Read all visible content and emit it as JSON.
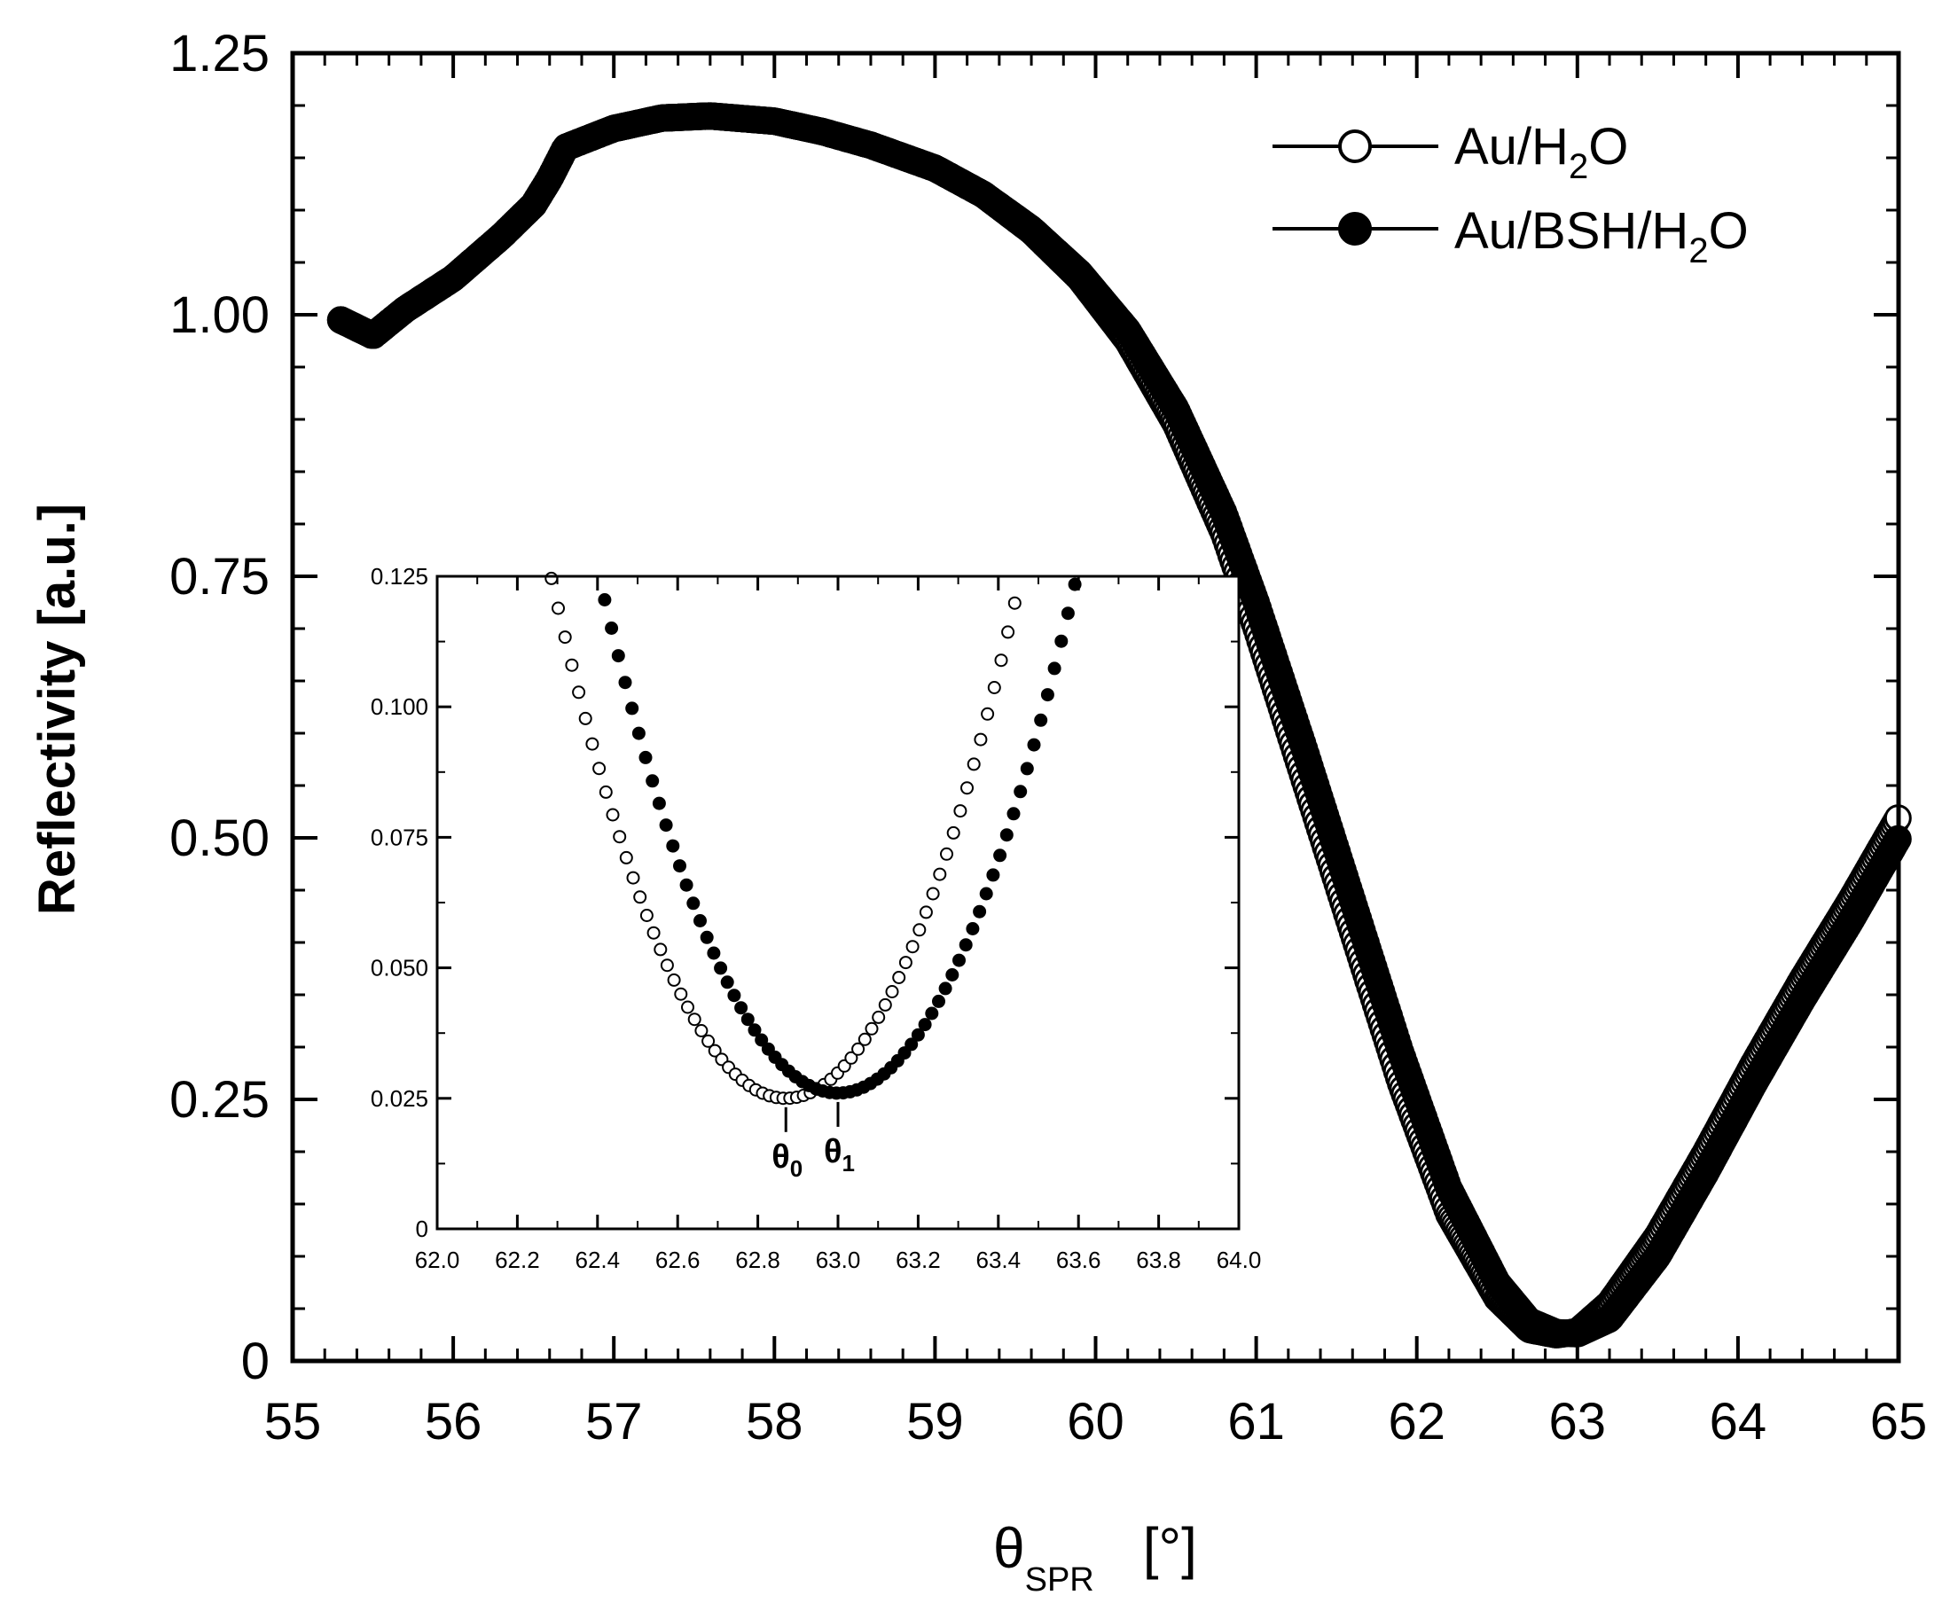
{
  "chart_data": [
    {
      "type": "scatter",
      "role": "main",
      "xlabel": "θSPR [°]",
      "xlabel_symbol": "θ",
      "xlabel_subscript": "SPR",
      "xlabel_unit": "[°]",
      "ylabel": "Reflectivity [a.u.]",
      "xlim": [
        55,
        65
      ],
      "ylim": [
        0,
        1.25
      ],
      "xticks": [
        55,
        56,
        57,
        58,
        59,
        60,
        61,
        62,
        63,
        64,
        65
      ],
      "xtick_labels": [
        "55",
        "56",
        "57",
        "58",
        "59",
        "60",
        "61",
        "62",
        "63",
        "64",
        "65"
      ],
      "yticks": [
        0,
        0.25,
        0.5,
        0.75,
        1.0,
        1.25
      ],
      "ytick_labels": [
        "0",
        "0.25",
        "0.50",
        "0.75",
        "1.00",
        "1.25"
      ],
      "legend_position": "top-right",
      "series": [
        {
          "name": "Au/H2O",
          "label_parts": [
            "Au/H",
            "2",
            "O"
          ],
          "marker": "open-circle",
          "x": [
            55.3,
            55.5,
            55.7,
            56.0,
            56.3,
            56.5,
            56.6,
            56.7,
            57.0,
            57.3,
            57.6,
            58.0,
            58.3,
            58.6,
            59.0,
            59.3,
            59.6,
            59.9,
            60.2,
            60.5,
            60.8,
            61.0,
            61.3,
            61.6,
            61.9,
            62.2,
            62.5,
            62.7,
            62.87,
            63.0,
            63.2,
            63.5,
            63.8,
            64.1,
            64.4,
            64.7,
            65.0
          ],
          "y": [
            0.995,
            0.98,
            1.005,
            1.035,
            1.075,
            1.105,
            1.13,
            1.16,
            1.178,
            1.188,
            1.19,
            1.185,
            1.175,
            1.162,
            1.14,
            1.115,
            1.08,
            1.035,
            0.975,
            0.895,
            0.79,
            0.7,
            0.555,
            0.41,
            0.265,
            0.14,
            0.06,
            0.03,
            0.025,
            0.028,
            0.055,
            0.12,
            0.2,
            0.285,
            0.365,
            0.44,
            0.52
          ]
        },
        {
          "name": "Au/BSH/H2O",
          "label_parts": [
            "Au/BSH/H",
            "2",
            "O"
          ],
          "marker": "filled-circle",
          "x": [
            55.3,
            55.5,
            55.7,
            56.0,
            56.3,
            56.5,
            56.6,
            56.7,
            57.0,
            57.3,
            57.6,
            58.0,
            58.3,
            58.6,
            59.0,
            59.3,
            59.6,
            59.9,
            60.2,
            60.5,
            60.8,
            61.0,
            61.3,
            61.6,
            61.9,
            62.2,
            62.5,
            62.7,
            62.87,
            63.0,
            63.2,
            63.5,
            63.8,
            64.1,
            64.4,
            64.7,
            65.0
          ],
          "y": [
            0.995,
            0.98,
            1.005,
            1.035,
            1.075,
            1.105,
            1.13,
            1.16,
            1.178,
            1.188,
            1.19,
            1.185,
            1.175,
            1.162,
            1.14,
            1.115,
            1.082,
            1.04,
            0.985,
            0.91,
            0.81,
            0.725,
            0.585,
            0.44,
            0.295,
            0.165,
            0.075,
            0.038,
            0.027,
            0.026,
            0.04,
            0.1,
            0.18,
            0.265,
            0.345,
            0.42,
            0.5
          ]
        }
      ]
    },
    {
      "type": "scatter",
      "role": "inset",
      "xlim": [
        62.0,
        64.0
      ],
      "ylim": [
        0,
        0.125
      ],
      "xticks": [
        62.0,
        62.2,
        62.4,
        62.6,
        62.8,
        63.0,
        63.2,
        63.4,
        63.6,
        63.8,
        64.0
      ],
      "xtick_labels": [
        "62.0",
        "62.2",
        "62.4",
        "62.6",
        "62.8",
        "63.0",
        "63.2",
        "63.4",
        "63.6",
        "63.8",
        "64.0"
      ],
      "yticks": [
        0,
        0.025,
        0.05,
        0.075,
        0.1,
        0.125
      ],
      "ytick_labels": [
        "0",
        "0.025",
        "0.050",
        "0.075",
        "0.100",
        "0.125"
      ],
      "series": [
        {
          "name": "Au/H2O",
          "marker": "open-circle",
          "min_x": 62.87,
          "min_y": 0.025,
          "curvature": 0.291,
          "x_range": [
            62.2,
            63.55
          ]
        },
        {
          "name": "Au/BSH/H2O",
          "marker": "filled-circle",
          "min_x": 63.0,
          "min_y": 0.026,
          "curvature": 0.279,
          "x_range": [
            62.35,
            63.7
          ]
        }
      ],
      "annotations": [
        {
          "symbol": "θ",
          "subscript": "0",
          "x": 62.87
        },
        {
          "symbol": "θ",
          "subscript": "1",
          "x": 63.0
        }
      ]
    }
  ]
}
